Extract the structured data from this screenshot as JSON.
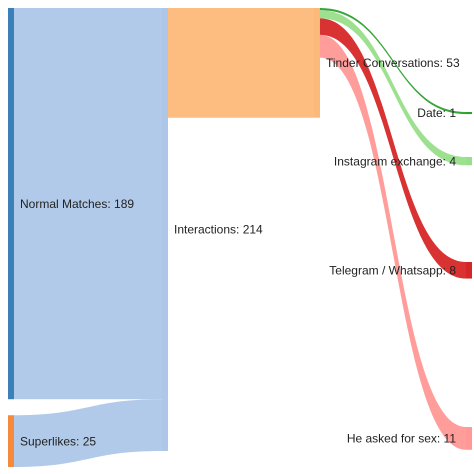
{
  "chart_data": {
    "type": "sankey",
    "nodes": [
      {
        "label": "Normal Matches: 189",
        "color": "#3b80b9"
      },
      {
        "label": "Superlikes: 25",
        "color": "#f58a3c"
      },
      {
        "label": "Interactions: 214",
        "color": "#aec7e8"
      },
      {
        "label": "Tinder Conversations: 53",
        "color": "#fdb97a"
      },
      {
        "label": "Date: 1",
        "color": "#2ca02c"
      },
      {
        "label": "Instagram exchange: 4",
        "color": "#98df8a"
      },
      {
        "label": "Telegram / Whatsapp: 8",
        "color": "#d62728"
      },
      {
        "label": "He asked for sex: 11",
        "color": "#ff9896"
      }
    ],
    "links": [
      {
        "source": 0,
        "target": 2,
        "value": 189,
        "color": "#aec7e8"
      },
      {
        "source": 1,
        "target": 2,
        "value": 25,
        "color": "#aec7e8"
      },
      {
        "source": 2,
        "target": 3,
        "value": 53,
        "color": "#fdb97a"
      },
      {
        "source": 3,
        "target": 4,
        "value": 1,
        "color": "#2ca02c"
      },
      {
        "source": 3,
        "target": 5,
        "value": 4,
        "color": "#98df8a"
      },
      {
        "source": 3,
        "target": 6,
        "value": 8,
        "color": "#d62728"
      },
      {
        "source": 3,
        "target": 7,
        "value": 11,
        "color": "#ff9896"
      }
    ]
  }
}
